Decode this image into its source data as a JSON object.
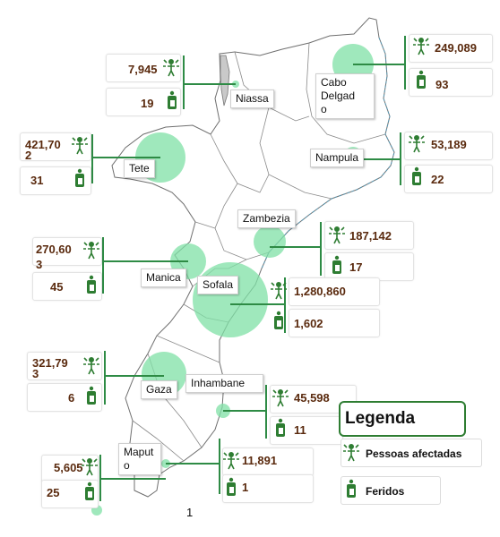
{
  "legend": {
    "title": "Legenda",
    "affected_label": "Pessoas afectadas",
    "injured_label": "Feridos"
  },
  "page_number": "1",
  "colors": {
    "bubble": "#7fe0a6",
    "bar": "#2e8b45",
    "number": "#5a2a0e",
    "icon": "#2e7d32"
  },
  "provinces": {
    "niassa": {
      "name": "Niassa",
      "affected": "7,945",
      "injured": "19"
    },
    "cabo": {
      "name": "Cabo\nDelgad\no",
      "affected": "249,089",
      "injured": "93"
    },
    "tete": {
      "name": "Tete",
      "affected": "421,70\n2",
      "injured": "31"
    },
    "nampula": {
      "name": "Nampula",
      "affected": "53,189",
      "injured": "22"
    },
    "zambezia": {
      "name": "Zambezia",
      "affected": "187,142",
      "injured": "17"
    },
    "manica": {
      "name": "Manica",
      "affected": "270,60\n3",
      "injured": "45"
    },
    "sofala": {
      "name": "Sofala",
      "affected": "1,280,860",
      "injured": "1,602"
    },
    "gaza": {
      "name": "Gaza",
      "affected": "321,79\n3",
      "injured": "6"
    },
    "inhambane": {
      "name": "Inhambane",
      "affected": "45,598",
      "injured": "11"
    },
    "maputo": {
      "name": "Maput\no",
      "affected": "5,605",
      "injured": "25"
    },
    "maputo_city": {
      "name": "",
      "affected": "11,891",
      "injured": "1"
    }
  }
}
